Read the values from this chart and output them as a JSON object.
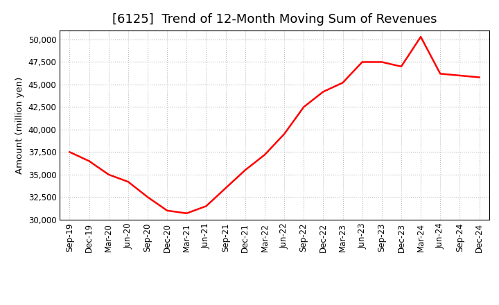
{
  "title": "[6125]  Trend of 12-Month Moving Sum of Revenues",
  "ylabel": "Amount (million yen)",
  "background_color": "#ffffff",
  "plot_bg_color": "#ffffff",
  "line_color": "#ff0000",
  "line_width": 1.8,
  "ylim": [
    30000,
    51000
  ],
  "yticks": [
    30000,
    32500,
    35000,
    37500,
    40000,
    42500,
    45000,
    47500,
    50000
  ],
  "x_labels": [
    "Sep-19",
    "Dec-19",
    "Mar-20",
    "Jun-20",
    "Sep-20",
    "Dec-20",
    "Mar-21",
    "Jun-21",
    "Sep-21",
    "Dec-21",
    "Mar-22",
    "Jun-22",
    "Sep-22",
    "Dec-22",
    "Mar-23",
    "Jun-23",
    "Sep-23",
    "Dec-23",
    "Mar-24",
    "Jun-24",
    "Sep-24",
    "Dec-24"
  ],
  "values": [
    37500,
    36500,
    35000,
    34200,
    32500,
    31000,
    30700,
    31500,
    33500,
    35500,
    37200,
    39500,
    42500,
    44200,
    45200,
    47500,
    47500,
    47000,
    50300,
    46200,
    46000,
    45800
  ],
  "grid_color": "#bbbbbb",
  "title_fontsize": 13,
  "tick_fontsize": 8.5,
  "ylabel_fontsize": 9.5
}
